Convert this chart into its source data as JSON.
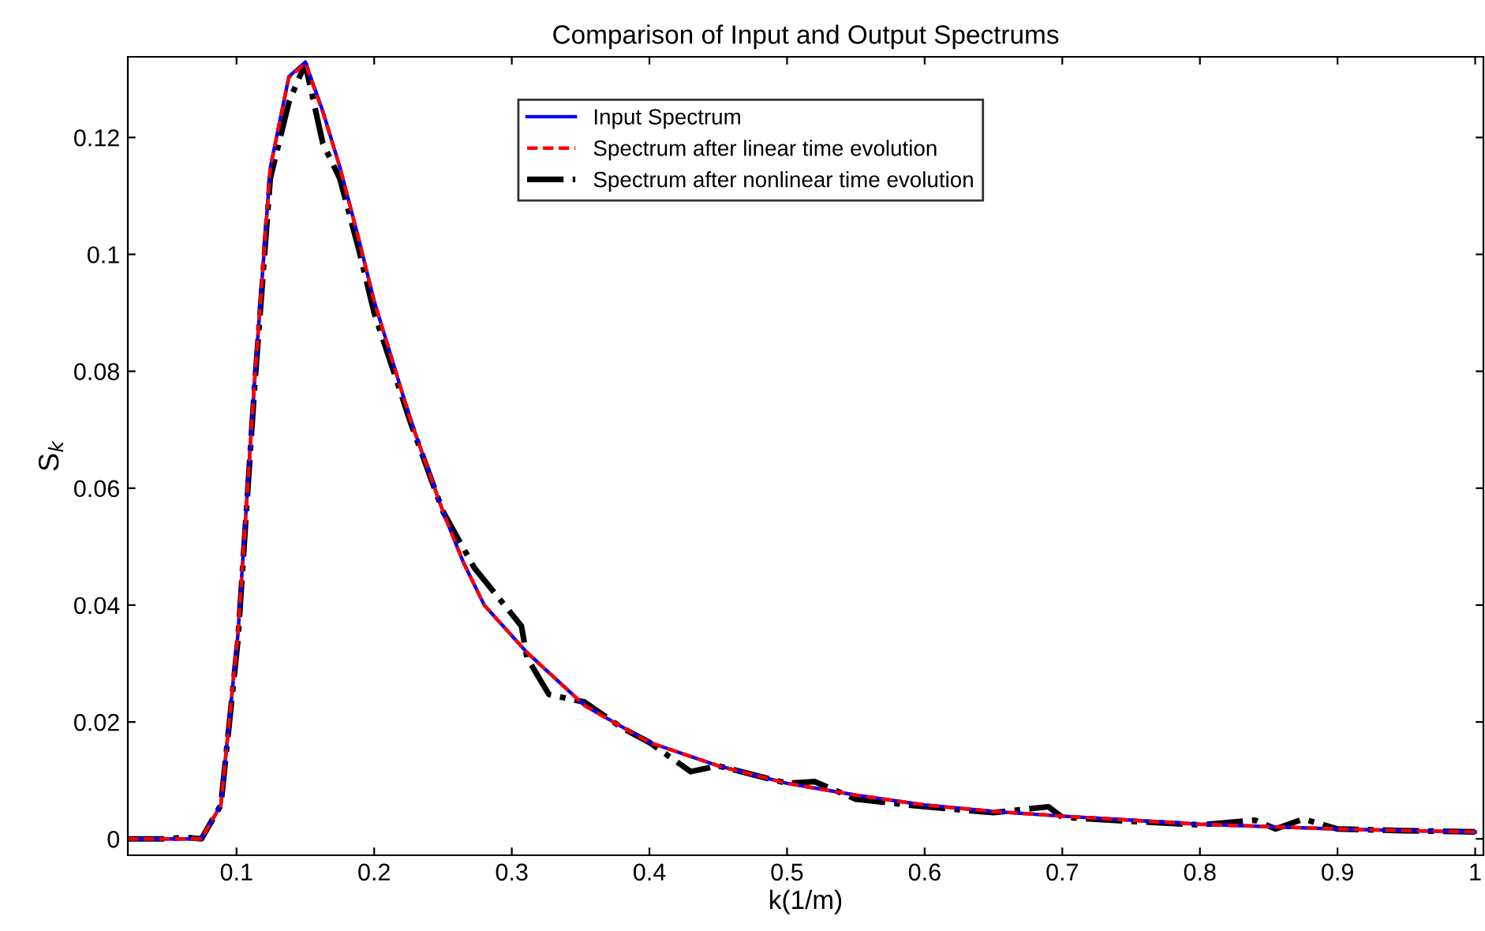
{
  "chart_data": {
    "type": "line",
    "title": "Comparison of Input and Output Spectrums",
    "xlabel": "k(1/m)",
    "ylabel": "S$_{k}$",
    "xlim": [
      0.021,
      1.006
    ],
    "ylim": [
      -0.0028,
      0.1338
    ],
    "xticks": [
      0.1,
      0.2,
      0.3,
      0.4,
      0.5,
      0.6,
      0.7,
      0.8,
      0.9,
      {
        "value": 1.0,
        "label": "1"
      }
    ],
    "yticks": [
      0,
      0.02,
      0.04,
      0.06,
      0.08,
      {
        "value": 0.1,
        "label": "0.1"
      },
      0.12
    ],
    "grid": false,
    "legend": "top",
    "marker": "none",
    "series": [
      {
        "name": "Input Spectrum",
        "color": "#0000ff",
        "line_style": "solid",
        "x": [
          0.021,
          0.035,
          0.05,
          0.062,
          0.0745,
          0.0886,
          0.101,
          0.113,
          0.1245,
          0.138,
          0.15,
          0.1627,
          0.175,
          0.1887,
          0.2,
          0.2268,
          0.25,
          0.265,
          0.28,
          0.311,
          0.353,
          0.4,
          0.45,
          0.5,
          0.55,
          0.6,
          0.65,
          0.7,
          0.75,
          0.8,
          0.85,
          0.9,
          0.95,
          1.0
        ],
        "values": [
          0,
          0,
          0,
          0,
          0,
          0.0058,
          0.035,
          0.078,
          0.1148,
          0.1304,
          0.1329,
          0.1245,
          0.115,
          0.1027,
          0.092,
          0.0714,
          0.056,
          0.0472,
          0.04,
          0.0319,
          0.0228,
          0.0165,
          0.0125,
          0.0095,
          0.0075,
          0.0058,
          0.0047,
          0.0039,
          0.0032,
          0.0025,
          0.0021,
          0.0017,
          0.0014,
          0.0012
        ]
      },
      {
        "name": "Spectrum after linear time evolution",
        "color": "#ff0000",
        "line_style": "dashed",
        "x": [
          0.021,
          0.035,
          0.05,
          0.062,
          0.0745,
          0.0886,
          0.101,
          0.113,
          0.1245,
          0.138,
          0.15,
          0.1627,
          0.175,
          0.1887,
          0.2,
          0.2268,
          0.25,
          0.265,
          0.28,
          0.311,
          0.353,
          0.4,
          0.45,
          0.5,
          0.55,
          0.6,
          0.65,
          0.7,
          0.75,
          0.8,
          0.85,
          0.9,
          0.95,
          1.0
        ],
        "values": [
          0,
          0,
          0,
          0,
          0,
          0.0058,
          0.035,
          0.078,
          0.1148,
          0.1302,
          0.1327,
          0.1243,
          0.115,
          0.1027,
          0.092,
          0.0714,
          0.056,
          0.0472,
          0.04,
          0.0319,
          0.0228,
          0.0165,
          0.0125,
          0.0095,
          0.0075,
          0.0058,
          0.0047,
          0.0039,
          0.0032,
          0.0025,
          0.0021,
          0.0017,
          0.0014,
          0.0012
        ]
      },
      {
        "name": "Spectrum after nonlinear time evolution",
        "color": "#000000",
        "line_style": "dashdot",
        "x": [
          0.021,
          0.035,
          0.05,
          0.062,
          0.0745,
          0.0886,
          0.101,
          0.113,
          0.1245,
          0.138,
          0.145,
          0.15,
          0.1627,
          0.175,
          0.1887,
          0.2,
          0.2268,
          0.25,
          0.2727,
          0.2878,
          0.307,
          0.311,
          0.327,
          0.353,
          0.38,
          0.4,
          0.43,
          0.45,
          0.5,
          0.52,
          0.55,
          0.6,
          0.65,
          0.69,
          0.7,
          0.75,
          0.8,
          0.84,
          0.855,
          0.875,
          0.9,
          0.95,
          1.0
        ],
        "values": [
          0,
          0,
          0,
          0.0003,
          0,
          0.0058,
          0.034,
          0.077,
          0.113,
          0.126,
          0.13,
          0.1325,
          0.119,
          0.113,
          0.101,
          0.09,
          0.071,
          0.056,
          0.0464,
          0.042,
          0.0364,
          0.031,
          0.0247,
          0.0234,
          0.019,
          0.0165,
          0.0115,
          0.0125,
          0.0095,
          0.0098,
          0.0068,
          0.0055,
          0.0045,
          0.0055,
          0.0037,
          0.003,
          0.0024,
          0.0032,
          0.0017,
          0.0034,
          0.0017,
          0.0014,
          0.0012
        ]
      }
    ]
  }
}
